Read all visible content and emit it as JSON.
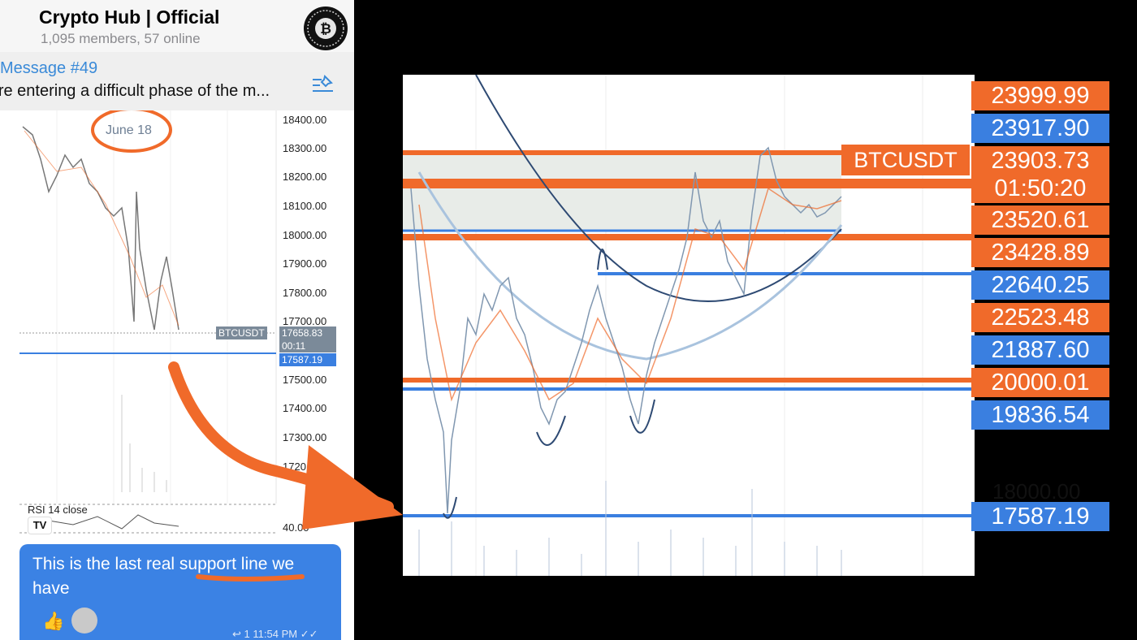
{
  "chat": {
    "title": "Crypto Hub | Official",
    "members": "1,095 members, 57 online",
    "pinned_title": "Message #49",
    "pinned_text": "'re entering a difficult phase of the m...",
    "date_badge": "June 18",
    "message_text": "This is the last real support line we have",
    "reply_count": "1",
    "time": "11:54 PM",
    "reaction_emoji": "👍"
  },
  "mini_chart": {
    "ticks": [
      "18400.00",
      "18300.00",
      "18200.00",
      "18100.00",
      "18000.00",
      "17900.00",
      "17800.00",
      "17700.00",
      "17500.00",
      "17400.00",
      "17300.00",
      "1720",
      "40.00"
    ],
    "symbol_tag": "BTCUSDT",
    "price_tag": "17658.83",
    "countdown": "00:11",
    "support_tag": "17587.19",
    "rsi_label": "RSI 14 close",
    "logo": "TV"
  },
  "big_chart": {
    "symbol_tag": "BTCUSDT",
    "prices": [
      {
        "label": "23999.99",
        "color": "orange"
      },
      {
        "label": "23917.90",
        "color": "blue"
      },
      {
        "label": "23903.73",
        "color": "orange"
      },
      {
        "label": "01:50:20",
        "color": "orange"
      },
      {
        "label": "23520.61",
        "color": "orange"
      },
      {
        "label": "23428.89",
        "color": "orange"
      },
      {
        "label": "22640.25",
        "color": "blue"
      },
      {
        "label": "22523.48",
        "color": "orange"
      },
      {
        "label": "21887.60",
        "color": "blue"
      },
      {
        "label": "20000.01",
        "color": "orange"
      },
      {
        "label": "19836.54",
        "color": "blue"
      },
      {
        "label": "17587.19",
        "color": "blue"
      }
    ],
    "plain_price": "18000.00"
  },
  "colors": {
    "orange": "#f06a2a",
    "blue": "#3a7fe0",
    "bubble": "#3b82e4"
  }
}
